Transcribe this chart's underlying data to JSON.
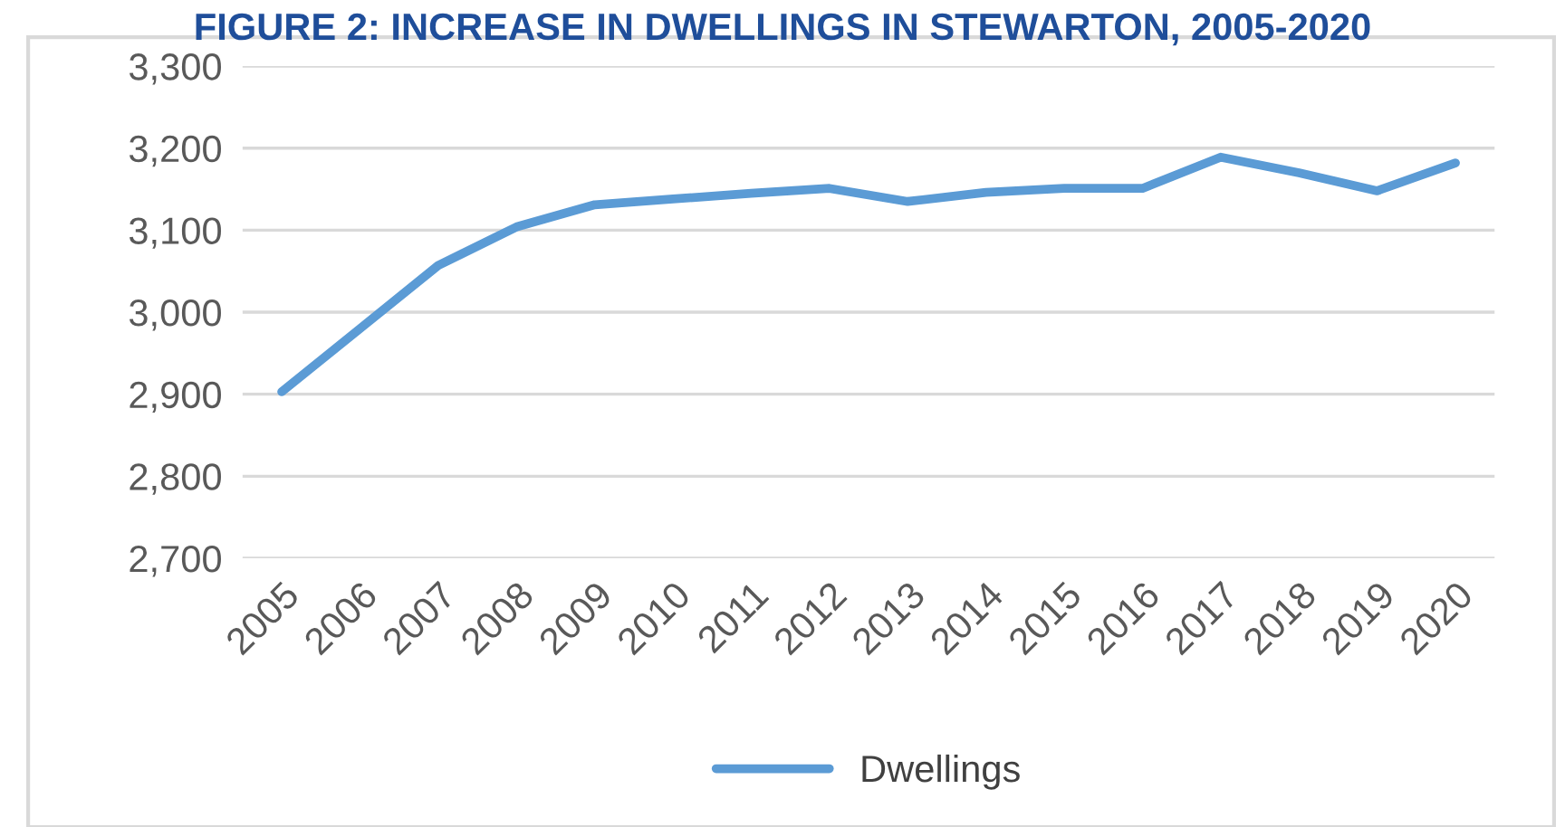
{
  "chart_data": {
    "type": "line",
    "title": "FIGURE 2: INCREASE IN DWELLINGS IN STEWARTON, 2005-2020",
    "categories": [
      "2005",
      "2006",
      "2007",
      "2008",
      "2009",
      "2010",
      "2011",
      "2012",
      "2013",
      "2014",
      "2015",
      "2016",
      "2017",
      "2018",
      "2019",
      "2020"
    ],
    "series": [
      {
        "name": "Dwellings",
        "color": "#5b9bd5",
        "values": [
          2903,
          2980,
          3057,
          3104,
          3131,
          3138,
          3145,
          3151,
          3135,
          3146,
          3151,
          3151,
          3189,
          3170,
          3148,
          3182
        ]
      }
    ],
    "ylim": [
      2700,
      3300
    ],
    "yticks": [
      {
        "value": 2700,
        "label": "2,700"
      },
      {
        "value": 2800,
        "label": "2,800"
      },
      {
        "value": 2900,
        "label": "2,900"
      },
      {
        "value": 3000,
        "label": "3,000"
      },
      {
        "value": 3100,
        "label": "3,100"
      },
      {
        "value": 3200,
        "label": "3,200"
      },
      {
        "value": 3300,
        "label": "3,300"
      }
    ],
    "grid": "y",
    "legend": "bottom",
    "marker": "none",
    "line_style": "solid"
  }
}
